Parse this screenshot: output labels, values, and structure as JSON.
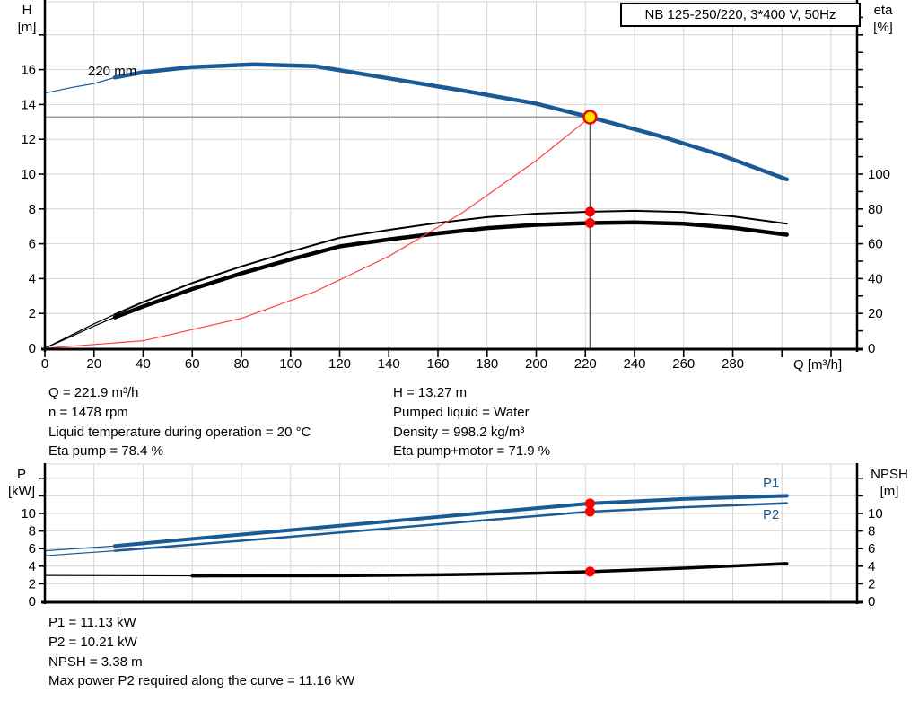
{
  "title_box": "NB 125-250/220, 3*400 V, 50Hz",
  "axis_labels": {
    "top_left_1": "H",
    "top_left_2": "[m]",
    "top_right_1": "eta",
    "top_right_2": "[%]",
    "x_label": "Q [m³/h]",
    "bottom_left_1": "P",
    "bottom_left_2": "[kW]",
    "bottom_right_1": "NPSH",
    "bottom_right_2": "[m]"
  },
  "curve_labels": {
    "impeller": "220 mm",
    "p1": "P1",
    "p2": "P2"
  },
  "info": {
    "top_left": [
      "Q = 221.9 m³/h",
      "n = 1478 rpm",
      "Liquid temperature during operation = 20 °C",
      "Eta pump = 78.4 %"
    ],
    "top_right": [
      "H = 13.27 m",
      "Pumped liquid = Water",
      "Density = 998.2 kg/m³",
      "Eta pump+motor = 71.9 %"
    ],
    "bottom": [
      "P1 = 11.13 kW",
      "P2 = 10.21 kW",
      "NPSH = 3.38 m",
      "Max power P2 required along the curve = 11.16 kW"
    ]
  },
  "colors": {
    "curve_blue": "#1a5a96",
    "curve_black": "#000000",
    "iso_red": "#ff4040",
    "dot_red": "#ff0000",
    "marker_fill": "#ffe600",
    "marker_ring": "#ff0000",
    "grid": "#d4d4d4",
    "duty_hline": "#9d9d9d",
    "duty_vline": "#555555",
    "axis": "#000000"
  },
  "chart_data": [
    {
      "type": "line",
      "title": "NB 125-250/220, 3*400 V, 50Hz",
      "xlabel": "Q [m³/h]",
      "ylabel_left": "H [m]",
      "ylabel_right": "eta [%]",
      "xlim": [
        0,
        330
      ],
      "ylim_left": [
        0,
        20
      ],
      "ylim_right": [
        0,
        100
      ],
      "grid": true,
      "x_tick_labels": [
        "0",
        "20",
        "40",
        "60",
        "80",
        "100",
        "120",
        "140",
        "160",
        "180",
        "200",
        "220",
        "240",
        "260",
        "280"
      ],
      "y_left_tick_labels": [
        "0",
        "2",
        "4",
        "6",
        "8",
        "10",
        "12",
        "14",
        "16"
      ],
      "y_right_tick_labels": [
        "0",
        "20",
        "40",
        "60",
        "80",
        "100"
      ],
      "series": [
        {
          "name": "head-curve-220mm",
          "axis": "left",
          "width": 4.5,
          "color": "blue",
          "thin_until": 28.5,
          "points": [
            [
              0,
              14.65
            ],
            [
              10,
              14.95
            ],
            [
              20,
              15.2
            ],
            [
              28.5,
              15.55
            ],
            [
              40,
              15.85
            ],
            [
              60,
              16.15
            ],
            [
              85,
              16.3
            ],
            [
              110,
              16.2
            ],
            [
              140,
              15.5
            ],
            [
              170,
              14.8
            ],
            [
              200,
              14.05
            ],
            [
              221.9,
              13.27
            ],
            [
              250,
              12.2
            ],
            [
              275,
              11.1
            ],
            [
              302,
              9.7
            ]
          ]
        },
        {
          "name": "eta-pump-curve",
          "axis": "right",
          "width": 2,
          "color": "black",
          "thin_until": 28.5,
          "points": [
            [
              0,
              0
            ],
            [
              10,
              7
            ],
            [
              20,
              14
            ],
            [
              28.5,
              19.5
            ],
            [
              40,
              26.5
            ],
            [
              60,
              37.5
            ],
            [
              80,
              47
            ],
            [
              100,
              55.5
            ],
            [
              120,
              63.5
            ],
            [
              140,
              68
            ],
            [
              160,
              72
            ],
            [
              180,
              75.3
            ],
            [
              200,
              77.3
            ],
            [
              221.9,
              78.4
            ],
            [
              240,
              78.9
            ],
            [
              260,
              78.2
            ],
            [
              280,
              75.8
            ],
            [
              302,
              71.5
            ]
          ]
        },
        {
          "name": "eta-pump-motor-curve",
          "axis": "right",
          "width": 4.5,
          "color": "black",
          "thin_until": 28.5,
          "points": [
            [
              0,
              0
            ],
            [
              10,
              6.3
            ],
            [
              20,
              12.7
            ],
            [
              28.5,
              17.8
            ],
            [
              40,
              24
            ],
            [
              60,
              34
            ],
            [
              80,
              43
            ],
            [
              100,
              51
            ],
            [
              120,
              58.5
            ],
            [
              140,
              62.5
            ],
            [
              160,
              66
            ],
            [
              180,
              69
            ],
            [
              200,
              70.9
            ],
            [
              221.9,
              71.9
            ],
            [
              240,
              72.3
            ],
            [
              260,
              71.5
            ],
            [
              280,
              69.2
            ],
            [
              302,
              65.2
            ]
          ]
        },
        {
          "name": "iso-efficiency-curve",
          "axis": "left",
          "width": 1.2,
          "color": "red",
          "points": [
            [
              0,
              0
            ],
            [
              40,
              0.43
            ],
            [
              80,
              1.72
            ],
            [
              110,
              3.26
            ],
            [
              140,
              5.28
            ],
            [
              170,
              7.79
            ],
            [
              200,
              10.78
            ],
            [
              221.9,
              13.27
            ]
          ]
        }
      ],
      "duty_point": {
        "Q": 221.9,
        "H": 13.27,
        "eta_pump": 78.4,
        "eta_pump_motor": 71.9
      }
    },
    {
      "type": "line",
      "xlabel": "",
      "ylabel_left": "P [kW]",
      "ylabel_right": "NPSH [m]",
      "xlim": [
        0,
        330
      ],
      "ylim_left": [
        0,
        15.5
      ],
      "ylim_right": [
        0,
        15.5
      ],
      "grid": true,
      "y_left_tick_labels": [
        "0",
        "2",
        "4",
        "6",
        "8",
        "10"
      ],
      "y_right_tick_labels": [
        "0",
        "2",
        "4",
        "6",
        "8",
        "10"
      ],
      "series": [
        {
          "name": "p1-curve",
          "axis": "left",
          "width": 4,
          "color": "blue",
          "thin_until": 28.5,
          "points": [
            [
              0,
              5.75
            ],
            [
              28.5,
              6.3
            ],
            [
              60,
              7.1
            ],
            [
              100,
              8.1
            ],
            [
              140,
              9.1
            ],
            [
              180,
              10.1
            ],
            [
              221.9,
              11.13
            ],
            [
              260,
              11.65
            ],
            [
              302,
              12.0
            ]
          ]
        },
        {
          "name": "p2-curve",
          "axis": "left",
          "width": 2.5,
          "color": "blue",
          "thin_until": 28.5,
          "points": [
            [
              0,
              5.2
            ],
            [
              28.5,
              5.75
            ],
            [
              60,
              6.45
            ],
            [
              100,
              7.35
            ],
            [
              140,
              8.3
            ],
            [
              180,
              9.25
            ],
            [
              221.9,
              10.21
            ],
            [
              260,
              10.7
            ],
            [
              302,
              11.16
            ]
          ]
        },
        {
          "name": "npsh-curve",
          "axis": "right",
          "width": 3.5,
          "color": "black",
          "thin_until": 28.5,
          "points": [
            [
              0,
              2.95
            ],
            [
              60,
              2.9
            ],
            [
              120,
              2.92
            ],
            [
              160,
              3.02
            ],
            [
              200,
              3.2
            ],
            [
              221.9,
              3.38
            ],
            [
              260,
              3.78
            ],
            [
              302,
              4.3
            ]
          ]
        }
      ],
      "duty_point": {
        "Q": 221.9,
        "P1": 11.13,
        "P2": 10.21,
        "NPSH": 3.38
      }
    }
  ]
}
